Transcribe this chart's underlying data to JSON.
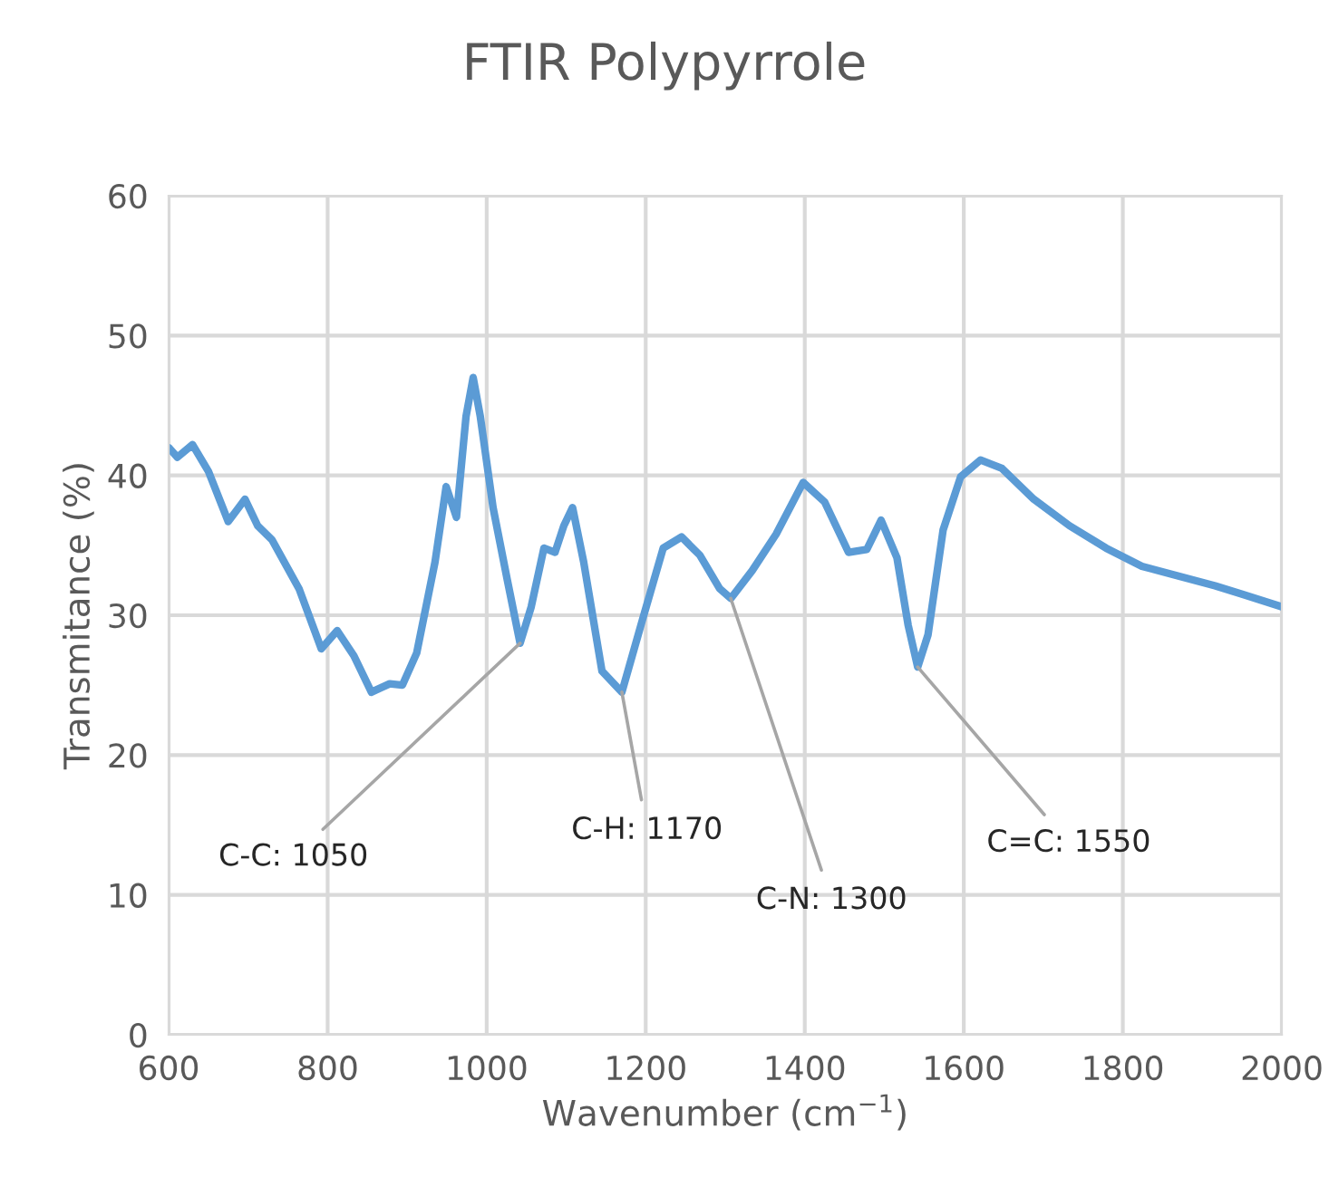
{
  "chart_data": {
    "type": "line",
    "title": "FTIR Polypyrrole",
    "xlabel": "Wavenumber (cm$^{−1}$)",
    "ylabel": "Transmitance (%)",
    "xlim": [
      600,
      2000
    ],
    "xticks": [
      600,
      800,
      1000,
      1200,
      1400,
      1600,
      1800,
      2000
    ],
    "ylim": [
      0,
      60
    ],
    "yticks": [
      0,
      10,
      20,
      30,
      40,
      50,
      60
    ],
    "grid": true,
    "marker": "none",
    "line_style": "solid",
    "series": [
      {
        "color": "#5b9bd5",
        "x": [
          600,
          611,
          630,
          650,
          675,
          696,
          712,
          730,
          764,
          792,
          812,
          833,
          855,
          878,
          894,
          912,
          935,
          949,
          962,
          974,
          983,
          992,
          1008,
          1026,
          1042,
          1056,
          1072,
          1086,
          1097,
          1108,
          1122,
          1145,
          1170,
          1197,
          1222,
          1245,
          1268,
          1293,
          1307,
          1334,
          1364,
          1398,
          1425,
          1455,
          1478,
          1496,
          1516,
          1530,
          1542,
          1555,
          1574,
          1596,
          1621,
          1648,
          1688,
          1733,
          1779,
          1824,
          1870,
          1916,
          1950,
          2000
        ],
        "values": [
          42.0,
          41.3,
          42.2,
          40.3,
          36.7,
          38.3,
          36.4,
          35.4,
          31.9,
          27.6,
          28.9,
          27.1,
          24.5,
          25.1,
          25.0,
          27.3,
          33.8,
          39.2,
          37.0,
          44.2,
          47.0,
          44.2,
          37.7,
          32.5,
          28.0,
          30.6,
          34.8,
          34.5,
          36.4,
          37.7,
          33.8,
          26.0,
          24.5,
          29.9,
          34.8,
          35.6,
          34.3,
          31.9,
          31.2,
          33.2,
          35.8,
          39.5,
          38.1,
          34.5,
          34.7,
          36.8,
          34.1,
          29.3,
          26.3,
          28.6,
          36.1,
          39.9,
          41.1,
          40.5,
          38.3,
          36.4,
          34.8,
          33.5,
          32.8,
          32.1,
          31.5,
          30.6
        ]
      }
    ],
    "annotations": [
      {
        "text": "C-C: 1050",
        "x": 1042,
        "y": 28.0
      },
      {
        "text": "C-H: 1170",
        "x": 1170,
        "y": 24.5
      },
      {
        "text": "C-N: 1300",
        "x": 1307,
        "y": 31.2
      },
      {
        "text": "C=C: 1550",
        "x": 1542,
        "y": 26.3
      }
    ]
  }
}
